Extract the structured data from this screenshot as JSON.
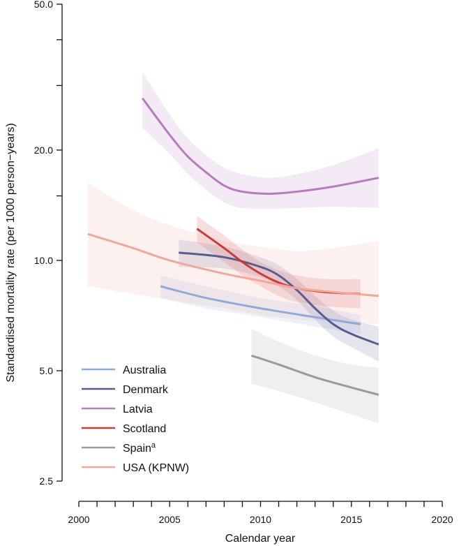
{
  "chart_data": {
    "type": "line",
    "xlabel": "Calendar year",
    "ylabel": "Standardised mortality rate (per 1000 person−years)",
    "y_scale": "log",
    "xlim": [
      2000,
      2020
    ],
    "ylim": [
      2.5,
      50
    ],
    "x_ticks": [
      2000,
      2005,
      2010,
      2015,
      2020
    ],
    "x_tick_labels": [
      "2000",
      "2005",
      "2010",
      "2015",
      "2020"
    ],
    "x_minor_step": 1,
    "y_ticks": [
      2.5,
      5,
      10,
      20,
      50
    ],
    "y_tick_labels": [
      "2.5",
      "5.0",
      "10.0",
      "20.0",
      "50.0"
    ],
    "y_minor_ticks": [
      15,
      30,
      40
    ],
    "legend_position": "bottom-left",
    "grid": false,
    "series": [
      {
        "name": "Australia",
        "sup": "",
        "color": "#8fa9d8",
        "x": [
          2004.5,
          2007,
          2010,
          2013,
          2015.5
        ],
        "y": [
          8.5,
          7.9,
          7.4,
          7.0,
          6.7
        ],
        "lower": [
          7.9,
          7.4,
          7.0,
          6.6,
          6.3
        ],
        "upper": [
          9.1,
          8.5,
          7.9,
          7.5,
          7.1
        ]
      },
      {
        "name": "Denmark",
        "sup": "",
        "color": "#585c8e",
        "x": [
          2005.5,
          2008,
          2010,
          2011,
          2012,
          2013,
          2014,
          2015,
          2016.5
        ],
        "y": [
          10.5,
          10.2,
          9.6,
          9.1,
          8.3,
          7.4,
          6.7,
          6.3,
          5.9
        ],
        "lower": [
          9.6,
          9.5,
          9.0,
          8.5,
          7.8,
          6.9,
          6.2,
          5.8,
          5.3
        ],
        "upper": [
          11.4,
          10.9,
          10.2,
          9.7,
          8.9,
          8.0,
          7.3,
          6.9,
          6.6
        ]
      },
      {
        "name": "Latvia",
        "sup": "",
        "color": "#b77cbf",
        "x": [
          2003.5,
          2005,
          2006,
          2007,
          2008,
          2009,
          2010.5,
          2012,
          2014,
          2016.5
        ],
        "y": [
          27.7,
          22.0,
          19.2,
          17.4,
          16.0,
          15.4,
          15.2,
          15.4,
          15.9,
          16.8
        ],
        "lower": [
          23.0,
          19.5,
          17.2,
          15.6,
          14.4,
          13.9,
          13.8,
          13.9,
          14.0,
          13.9
        ],
        "upper": [
          32.7,
          25.0,
          21.5,
          19.4,
          17.9,
          17.2,
          16.8,
          17.2,
          18.2,
          20.2
        ]
      },
      {
        "name": "Scotland",
        "sup": "",
        "color": "#cc3a3a",
        "x": [
          2006.5,
          2008,
          2009,
          2010,
          2011,
          2012,
          2013.5,
          2015.5
        ],
        "y": [
          12.2,
          10.8,
          9.9,
          9.2,
          8.7,
          8.4,
          8.2,
          8.1
        ],
        "lower": [
          11.2,
          9.9,
          9.1,
          8.5,
          8.0,
          7.7,
          7.5,
          7.4
        ],
        "upper": [
          13.2,
          11.7,
          10.7,
          9.9,
          9.4,
          9.1,
          8.9,
          8.9
        ]
      },
      {
        "name": "Spain",
        "sup": "a",
        "color": "#9a9a9a",
        "x": [
          2009.5,
          2011,
          2013,
          2015,
          2016.5
        ],
        "y": [
          5.5,
          5.2,
          4.8,
          4.5,
          4.3
        ],
        "lower": [
          4.6,
          4.4,
          4.1,
          3.8,
          3.6
        ],
        "upper": [
          6.5,
          6.0,
          5.5,
          5.2,
          5.1
        ]
      },
      {
        "name": "USA (KPNW)",
        "sup": "",
        "color": "#f0a79c",
        "x": [
          2000.5,
          2003,
          2005,
          2008,
          2010,
          2012,
          2014,
          2016.5
        ],
        "y": [
          11.8,
          10.8,
          10.0,
          9.2,
          8.8,
          8.4,
          8.2,
          8.0
        ],
        "lower": [
          8.5,
          8.1,
          7.8,
          7.4,
          7.1,
          6.9,
          6.8,
          6.7
        ],
        "upper": [
          16.3,
          13.7,
          12.5,
          11.3,
          10.9,
          10.6,
          10.8,
          11.3
        ]
      }
    ]
  }
}
